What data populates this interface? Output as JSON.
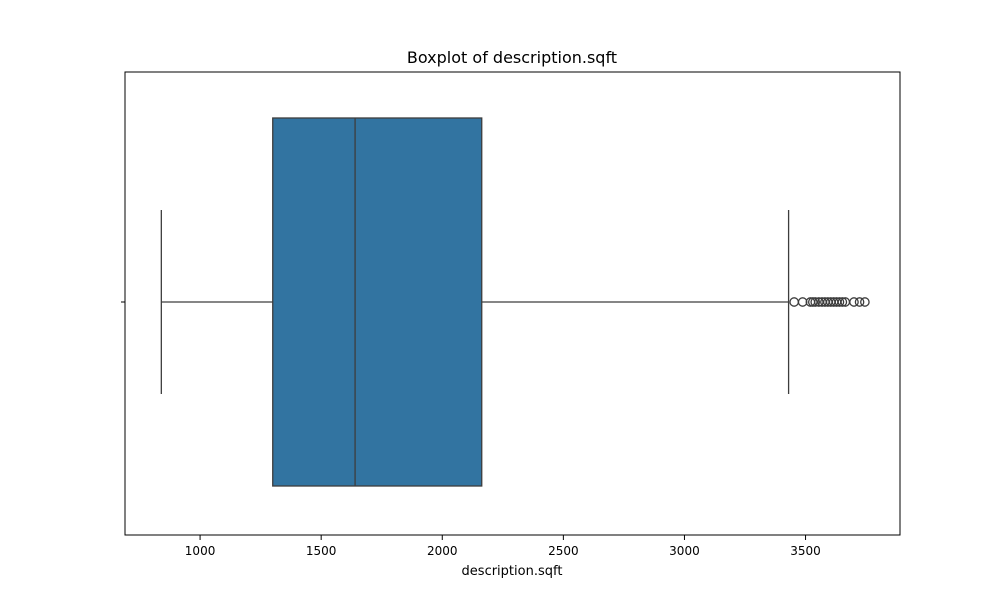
{
  "chart_data": {
    "type": "boxplot",
    "title": "Boxplot of description.sqft",
    "xlabel": "description.sqft",
    "ylabel": "",
    "xlim": [
      690,
      3890
    ],
    "xticks": [
      1000,
      1500,
      2000,
      2500,
      3000,
      3500
    ],
    "xtick_labels": [
      "1000",
      "1500",
      "2000",
      "2500",
      "3000",
      "3500"
    ],
    "grid": false,
    "orientation": "horizontal",
    "box_color": "#3274a1",
    "line_color": "#3d3d3d",
    "outlier_color": "#3d3d3d",
    "series": [
      {
        "whisker_low": 840,
        "q1": 1300,
        "median": 1640,
        "q3": 2163,
        "whisker_high": 3430,
        "outliers": [
          3453,
          3488,
          3520,
          3530,
          3540,
          3555,
          3568,
          3580,
          3592,
          3604,
          3616,
          3628,
          3640,
          3652,
          3664,
          3700,
          3723,
          3745
        ]
      }
    ]
  }
}
